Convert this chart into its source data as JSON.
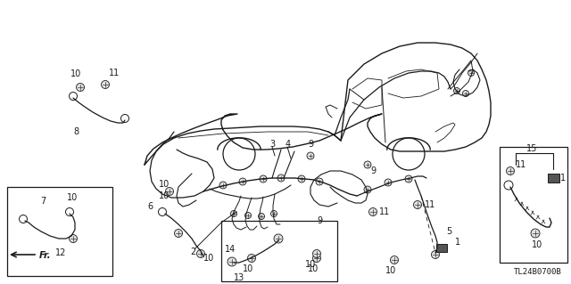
{
  "diagram_id": "TL24B0700B",
  "background_color": "#ffffff",
  "line_color": "#1a1a1a",
  "fig_width": 6.4,
  "fig_height": 3.19,
  "dpi": 100
}
